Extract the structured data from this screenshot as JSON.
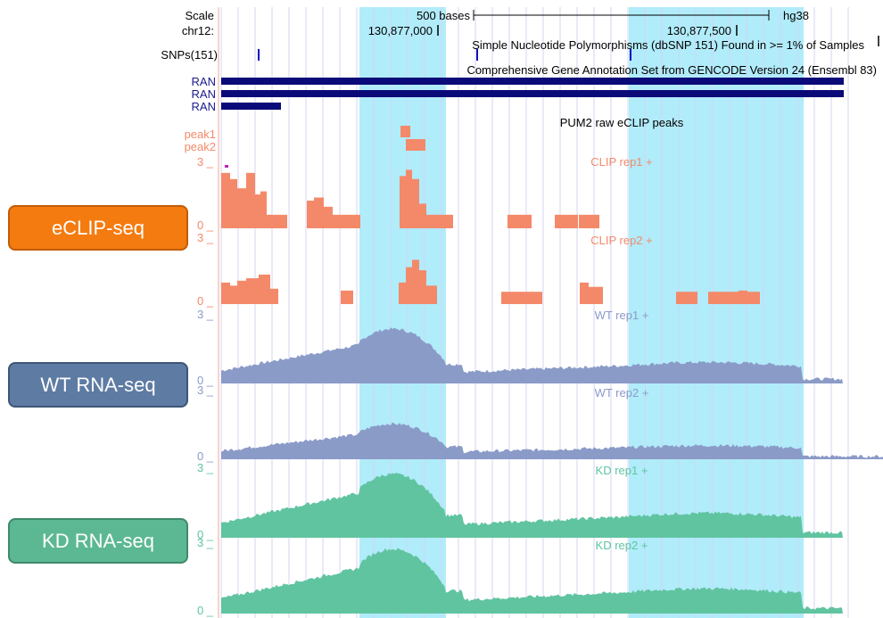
{
  "header": {
    "scale_label": "Scale",
    "chrom_label": "chr12:",
    "scale_bar_label": "500 bases",
    "assembly": "hg38",
    "coord_1": "130,877,000",
    "coord_2": "130,877,500"
  },
  "tracks": {
    "snp": {
      "label": "SNPs(151)",
      "title": "Simple Nucleotide Polymorphisms (dbSNP 151) Found in >= 1% of Samples"
    },
    "gencode": {
      "title": "Comprehensive Gene Annotation Set from GENCODE Version 24 (Ensembl 83)",
      "genes": [
        "RAN",
        "RAN",
        "RAN"
      ]
    },
    "peaks": {
      "title": "PUM2 raw eCLIP peaks",
      "rows": [
        "peak1",
        "peak2"
      ]
    },
    "signal": [
      {
        "key": "clip1",
        "label": "CLIP rep1 +",
        "ymax": "3",
        "ymin": "0",
        "color": "#f4896a"
      },
      {
        "key": "clip2",
        "label": "CLIP rep2 +",
        "ymax": "3",
        "ymin": "0",
        "color": "#f4896a"
      },
      {
        "key": "wt1",
        "label": "WT rep1 +",
        "ymax": "3",
        "ymin": "0",
        "color": "#8b9bc8"
      },
      {
        "key": "wt2",
        "label": "WT rep2 +",
        "ymax": "3",
        "ymin": "0",
        "color": "#8b9bc8"
      },
      {
        "key": "kd1",
        "label": "KD rep1 +",
        "ymax": "3",
        "ymin": "0",
        "color": "#60c4a0"
      },
      {
        "key": "kd2",
        "label": "KD rep2 +",
        "ymax": "3",
        "ymin": "0",
        "color": "#60c4a0"
      }
    ]
  },
  "buttons": {
    "eclip": "eCLIP-seq",
    "wt": "WT RNA-seq",
    "kd": "KD RNA-seq"
  },
  "colors": {
    "highlight": "#b0ecfa",
    "gene": "#0a0a78",
    "clip": "#f4896a",
    "wt": "#8b9bc8",
    "kd": "#60c4a0",
    "grid": "#d4d4f2",
    "snp": "#1010c0"
  }
}
